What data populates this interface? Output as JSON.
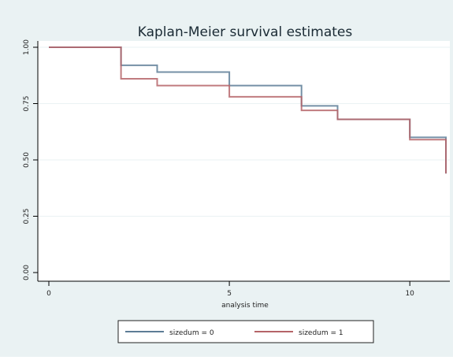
{
  "chart_data": {
    "type": "line",
    "title": "Kaplan-Meier survival estimates",
    "xlabel": "analysis time",
    "ylabel": "",
    "xlim": [
      0,
      11
    ],
    "ylim": [
      0,
      1
    ],
    "x_ticks": [
      0,
      5,
      10
    ],
    "y_ticks": [
      0.0,
      0.25,
      0.5,
      0.75,
      1.0
    ],
    "x_tick_labels": [
      "0",
      "5",
      "10"
    ],
    "y_tick_labels": [
      "0.00",
      "0.25",
      "0.50",
      "0.75",
      "1.00"
    ],
    "grid": "horizontal",
    "legend_position": "bottom",
    "step": true,
    "series": [
      {
        "name": "sizedum = 0",
        "color": "#5d7d96",
        "points": [
          [
            0,
            1.0
          ],
          [
            2,
            1.0
          ],
          [
            2,
            0.92
          ],
          [
            3,
            0.92
          ],
          [
            3,
            0.89
          ],
          [
            5,
            0.89
          ],
          [
            5,
            0.83
          ],
          [
            7,
            0.83
          ],
          [
            7,
            0.74
          ],
          [
            8,
            0.74
          ],
          [
            8,
            0.68
          ],
          [
            10,
            0.68
          ],
          [
            10,
            0.6
          ],
          [
            11,
            0.6
          ],
          [
            11,
            0.44
          ]
        ]
      },
      {
        "name": "sizedum = 1",
        "color": "#b56468",
        "points": [
          [
            0,
            1.0
          ],
          [
            2,
            1.0
          ],
          [
            2,
            0.86
          ],
          [
            3,
            0.86
          ],
          [
            3,
            0.83
          ],
          [
            5,
            0.83
          ],
          [
            5,
            0.78
          ],
          [
            7,
            0.78
          ],
          [
            7,
            0.72
          ],
          [
            8,
            0.72
          ],
          [
            8,
            0.68
          ],
          [
            10,
            0.68
          ],
          [
            10,
            0.59
          ],
          [
            11,
            0.59
          ],
          [
            11,
            0.44
          ]
        ]
      }
    ]
  }
}
